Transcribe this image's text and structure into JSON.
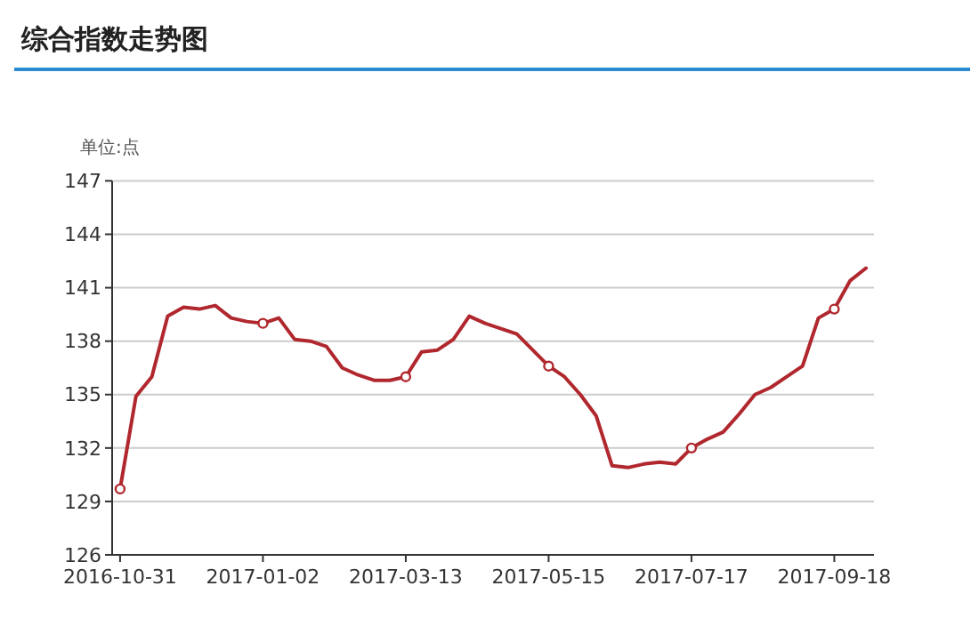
{
  "chart_data": {
    "type": "line",
    "title": "综合指数走势图",
    "ylabel": "单位:点",
    "categories": [
      "2016-10-31",
      null,
      null,
      null,
      null,
      null,
      null,
      null,
      null,
      "2017-01-02",
      null,
      null,
      null,
      null,
      null,
      null,
      null,
      null,
      "2017-03-13",
      null,
      null,
      null,
      null,
      null,
      null,
      null,
      null,
      "2017-05-15",
      null,
      null,
      null,
      null,
      null,
      null,
      null,
      null,
      "2017-07-17",
      null,
      null,
      null,
      null,
      null,
      null,
      null,
      null,
      "2017-09-18",
      null,
      null
    ],
    "series": [
      {
        "color": "#b0282e",
        "marker": "none",
        "values": [
          129.7,
          134.9,
          136.0,
          139.4,
          139.9,
          139.8,
          140.0,
          139.3,
          139.1,
          139.0,
          139.3,
          138.1,
          138.0,
          137.7,
          136.5,
          136.1,
          135.8,
          135.8,
          136.0,
          137.4,
          137.5,
          138.1,
          139.4,
          139.0,
          138.7,
          138.4,
          137.5,
          136.6,
          136.0,
          135.0,
          133.8,
          131.0,
          130.9,
          131.1,
          131.2,
          131.1,
          132.0,
          132.5,
          132.9,
          133.9,
          135.0,
          135.4,
          136.0,
          136.6,
          139.3,
          139.8,
          141.4,
          142.1
        ]
      },
      {
        "type": "scatter",
        "color": "#b0282e",
        "marker": "circle",
        "values": [
          129.7,
          null,
          null,
          null,
          null,
          null,
          null,
          null,
          null,
          139.0,
          null,
          null,
          null,
          null,
          null,
          null,
          null,
          null,
          136.0,
          null,
          null,
          null,
          null,
          null,
          null,
          null,
          null,
          136.6,
          null,
          null,
          null,
          null,
          null,
          null,
          null,
          null,
          132.0,
          null,
          null,
          null,
          null,
          null,
          null,
          null,
          null,
          139.8,
          null,
          null
        ]
      }
    ],
    "ylim": [
      126,
      147
    ],
    "yticks": [
      126,
      129,
      132,
      135,
      138,
      141,
      144,
      147
    ],
    "grid": "y",
    "line_style": "solid"
  }
}
